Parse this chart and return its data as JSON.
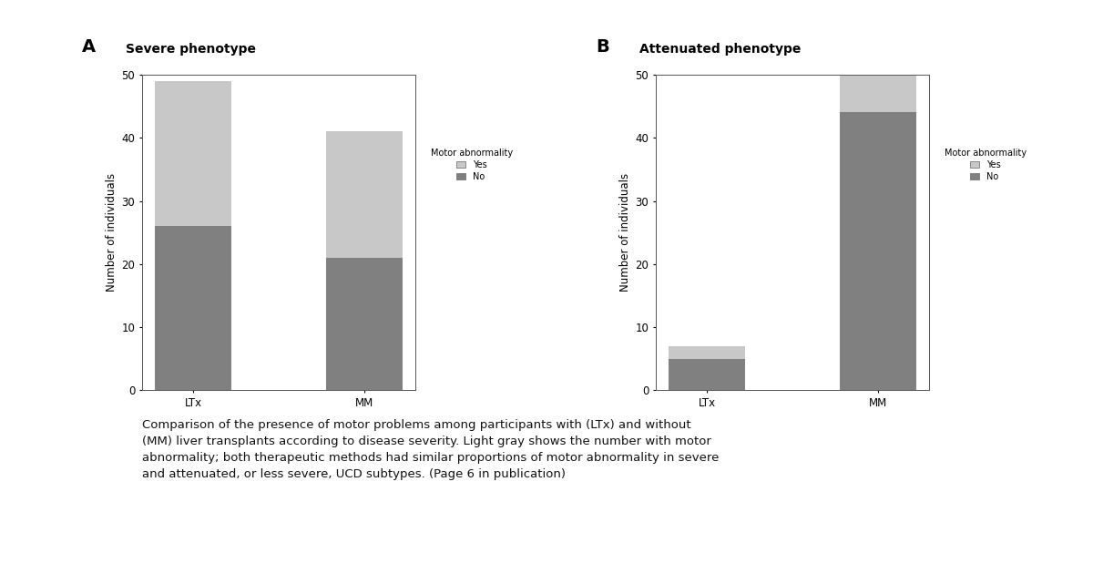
{
  "panel_A": {
    "title": "Severe phenotype",
    "categories": [
      "LTx",
      "MM"
    ],
    "no_values": [
      26,
      21
    ],
    "yes_values": [
      23,
      20
    ],
    "ylim": [
      0,
      50
    ],
    "yticks": [
      0,
      10,
      20,
      30,
      40,
      50
    ]
  },
  "panel_B": {
    "title": "Attenuated phenotype",
    "categories": [
      "LTx",
      "MM"
    ],
    "no_values": [
      5,
      44
    ],
    "yes_values": [
      2,
      7
    ],
    "ylim": [
      0,
      50
    ],
    "yticks": [
      0,
      10,
      20,
      30,
      40,
      50
    ]
  },
  "color_no": "#808080",
  "color_yes": "#c8c8c8",
  "ylabel": "Number of individuals",
  "legend_title": "Motor abnormality",
  "legend_yes": "Yes",
  "legend_no": "No",
  "caption_line1": "Comparison of the presence of motor problems among participants with (LTx) and without",
  "caption_line2": "(MM) liver transplants according to disease severity. Light gray shows the number with motor",
  "caption_line3": "abnormality; both therapeutic methods had similar proportions of motor abnormality in severe",
  "caption_line4": "and attenuated, or less severe, UCD subtypes. (Page 6 in publication)",
  "bar_width": 0.45,
  "background_color": "#ffffff",
  "panel_label_A": "A",
  "panel_label_B": "B"
}
